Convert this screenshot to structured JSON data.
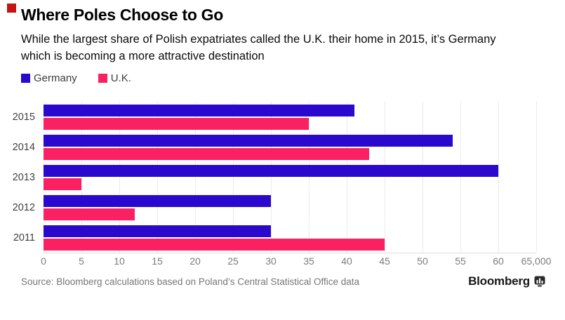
{
  "page": {
    "background": "#ffffff",
    "marker_color": "#c31313"
  },
  "header": {
    "title": "Where Poles Choose to Go",
    "subtitle_line1": "While the largest share of Polish expatriates called the U.K. their home in 2015, it’s Germany",
    "subtitle_line2": "which is becoming a more attractive destination"
  },
  "legend": {
    "items": [
      {
        "label": "Germany",
        "color": "#2b08ce"
      },
      {
        "label": "U.K.",
        "color": "#f92161"
      }
    ]
  },
  "chart_data": {
    "type": "bar",
    "orientation": "horizontal",
    "title": "Where Poles Choose to Go",
    "categories": [
      "2015",
      "2014",
      "2013",
      "2012",
      "2011"
    ],
    "series": [
      {
        "name": "Germany",
        "color": "#2b08ce",
        "values": [
          41,
          54,
          60,
          30,
          30
        ]
      },
      {
        "name": "U.K.",
        "color": "#f92161",
        "values": [
          35,
          43,
          5,
          12,
          45
        ]
      }
    ],
    "unit": "thousands of people",
    "xlim": [
      0,
      65
    ],
    "x_tick_step": 5,
    "x_tick_labels": [
      "0",
      "5",
      "10",
      "15",
      "20",
      "25",
      "30",
      "35",
      "40",
      "45",
      "50",
      "55",
      "60",
      "65,000"
    ],
    "grid": true,
    "legend_position": "top-left"
  },
  "footer": {
    "source": "Source: Bloomberg calculations based on Poland’s Central Statistical Office data",
    "brand": "Bloomberg"
  }
}
